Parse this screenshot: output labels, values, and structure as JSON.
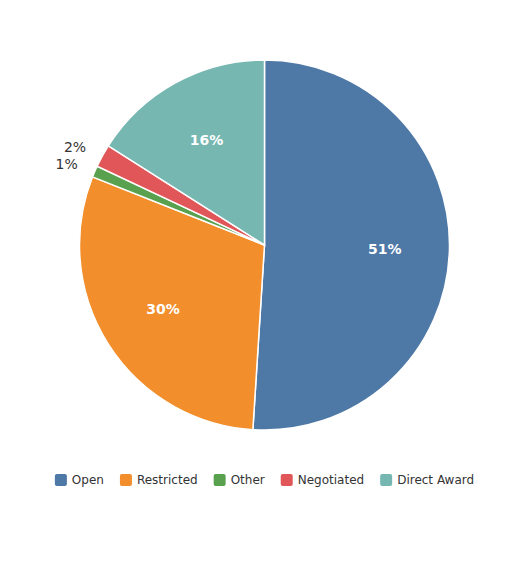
{
  "chart_data": {
    "type": "pie",
    "categories": [
      "Open",
      "Restricted",
      "Other",
      "Negotiated",
      "Direct Award"
    ],
    "values": [
      51,
      30,
      1,
      2,
      16
    ],
    "value_labels": [
      "51%",
      "30%",
      "1%",
      "2%",
      "16%"
    ],
    "colors": [
      "#4e79a7",
      "#f28e2b",
      "#59a14f",
      "#e15759",
      "#76b7b2"
    ],
    "data_labels": true,
    "legend": "bottom"
  }
}
